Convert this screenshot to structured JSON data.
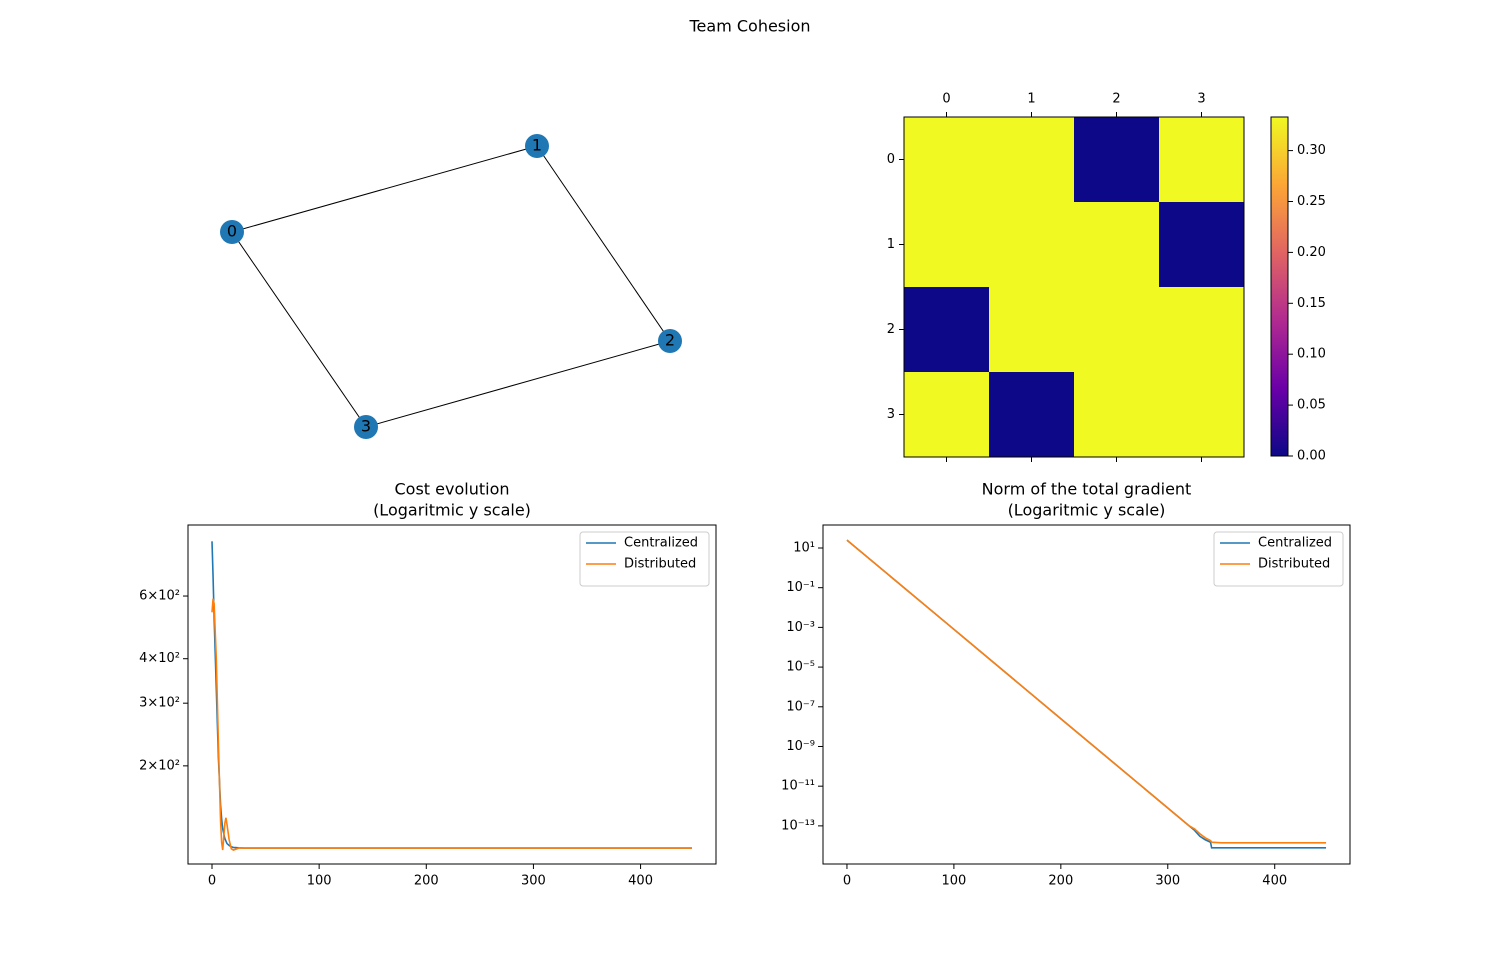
{
  "title": "Team Cohesion",
  "chart_data": [
    {
      "type": "network",
      "nodes": [
        "0",
        "1",
        "2",
        "3"
      ],
      "edges": [
        [
          0,
          1
        ],
        [
          1,
          2
        ],
        [
          2,
          3
        ],
        [
          3,
          0
        ]
      ],
      "color": "#1f77b4"
    },
    {
      "type": "heatmap",
      "values": [
        [
          0.333,
          0.333,
          0,
          0.333
        ],
        [
          0.333,
          0.333,
          0.333,
          0
        ],
        [
          0,
          0.333,
          0.333,
          0.333
        ],
        [
          0.333,
          0,
          0.333,
          0.333
        ]
      ],
      "xticks": [
        0,
        1,
        2,
        3
      ],
      "yticks": [
        0,
        1,
        2,
        3
      ],
      "zlim": [
        0,
        0.333
      ],
      "zticks": [
        {
          "value": 0,
          "label": "0.00"
        },
        {
          "value": 0.05,
          "label": "0.05"
        },
        {
          "value": 0.1,
          "label": "0.10"
        },
        {
          "value": 0.15,
          "label": "0.15"
        },
        {
          "value": 0.2,
          "label": "0.20"
        },
        {
          "value": 0.25,
          "label": "0.25"
        },
        {
          "value": 0.3,
          "label": "0.30"
        }
      ],
      "colormap": [
        "#0d0887",
        "#6a00a8",
        "#b12a90",
        "#e16462",
        "#fca636",
        "#f0f921"
      ]
    },
    {
      "type": "line",
      "title": [
        "Cost evolution",
        "(Logaritmic y scale)"
      ],
      "log_y": true,
      "legend": "upper right",
      "x": [
        0,
        1,
        2,
        4,
        6,
        8,
        9,
        10,
        12,
        13,
        14,
        16,
        18,
        20,
        25,
        30,
        50,
        100,
        200,
        300,
        448
      ],
      "series": [
        {
          "name": "Centralized",
          "color": "#1f77b4",
          "values": [
            855,
            680,
            520,
            330,
            210,
            155,
            142,
            133,
            125,
            123,
            121,
            119.5,
            118.5,
            118,
            117.7,
            117.5,
            117.5,
            117.5,
            117.5,
            117.5,
            117.5
          ]
        },
        {
          "name": "Distributed",
          "color": "#ff7f0e",
          "values": [
            540,
            590,
            570,
            400,
            230,
            140,
            122,
            116,
            138,
            143,
            137,
            124,
            117,
            116,
            117.5,
            117.5,
            117.5,
            117.5,
            117.5,
            117.5,
            117.5
          ]
        }
      ],
      "xlim": [
        -22.4,
        470.4
      ],
      "xticks": [
        0,
        100,
        200,
        300,
        400
      ],
      "ylim": [
        106,
        950
      ],
      "yticks": [
        {
          "value": 200,
          "label": "2×10²"
        },
        {
          "value": 300,
          "label": "3×10²"
        },
        {
          "value": 400,
          "label": "4×10²"
        },
        {
          "value": 600,
          "label": "6×10²"
        }
      ]
    },
    {
      "type": "line",
      "title": [
        "Norm of the total gradient",
        "(Logaritmic y scale)"
      ],
      "log_y": true,
      "legend": "upper right",
      "x": [
        0,
        100,
        200,
        300,
        320,
        325,
        330,
        335,
        340,
        341,
        350,
        448
      ],
      "series": [
        {
          "name": "Centralized",
          "color": "#1f77b4",
          "values": [
            25,
            0.0008,
            2.5e-08,
            8e-13,
            1e-13,
            6e-14,
            3e-14,
            2e-14,
            1.5e-14,
            7.8e-15,
            7.8e-15,
            7.8e-15
          ]
        },
        {
          "name": "Distributed",
          "color": "#ff7f0e",
          "values": [
            25,
            0.0008,
            2.5e-08,
            8e-13,
            1e-13,
            7e-14,
            4e-14,
            2.5e-14,
            1.8e-14,
            1.5e-14,
            1.4e-14,
            1.4e-14
          ]
        }
      ],
      "xlim": [
        -22.4,
        470.4
      ],
      "xticks": [
        0,
        100,
        200,
        300,
        400
      ],
      "ylim": [
        1.2e-15,
        144
      ],
      "yticks": [
        {
          "value": 10,
          "label": "10¹"
        },
        {
          "value": 0.1,
          "label": "10⁻¹"
        },
        {
          "value": 0.001,
          "label": "10⁻³"
        },
        {
          "value": 1e-05,
          "label": "10⁻⁵"
        },
        {
          "value": 1e-07,
          "label": "10⁻⁷"
        },
        {
          "value": 1e-09,
          "label": "10⁻⁹"
        },
        {
          "value": 1e-11,
          "label": "10⁻¹¹"
        },
        {
          "value": 1e-13,
          "label": "10⁻¹³"
        }
      ]
    }
  ]
}
